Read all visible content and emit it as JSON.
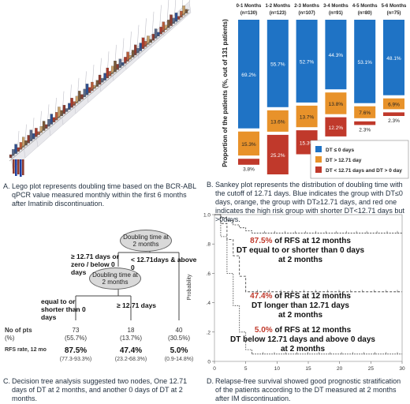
{
  "panelA": {
    "letter": "A.",
    "caption": "Lego plot represents doubling time based on the BCR-ABL qPCR value measured monthly within the first 6 months after Imatinib discontinuation."
  },
  "panelB": {
    "letter": "B.",
    "caption": "Sankey plot represents the distribution of doubling time with the cutoff of 12.71 days. Blue indicates the group with DT≤0 days, orange, the group with DT≥12.71 days, and red one indicates the high risk group with shorter DT<12.71 days but >0days."
  },
  "panelC": {
    "letter": "C.",
    "caption": "Decision tree analysis suggested two nodes, One 12.71 days of DT at 2 months, and another 0 days of DT at 2 months.",
    "node1": "Doubling time at 2 months",
    "node2": "Doubling time at 2 months",
    "branch_left_top": "≥ 12.71 days or zero / below 0 days",
    "branch_right_top": "< 12.71days & above 0",
    "branch_left_bottom": "equal to or shorter than 0 days",
    "branch_right_bottom": "≥ 12.71 days",
    "row1_label": "No of pts",
    "row1_sub": "(%)",
    "row2_label": "RFS rate, 12 mo",
    "groups": [
      {
        "n": "73",
        "pct": "(55.7%)",
        "rfs": "87.5%",
        "ci": "(77.3-93.3%)"
      },
      {
        "n": "18",
        "pct": "(13.7%)",
        "rfs": "47.4%",
        "ci": "(23.2-68.3%)"
      },
      {
        "n": "40",
        "pct": "(30.5%)",
        "rfs": "5.0%",
        "ci": "(0.9-14.8%)"
      }
    ]
  },
  "panelD": {
    "letter": "D.",
    "caption": "Relapse-free survival showed good prognostic stratification of the patients according to the DT measured at 2 months after IM discontinuation.",
    "annotations": [
      {
        "pct": "87.5%",
        "rest": " of RFS at 12 months",
        "line2": "DT equal to or shorter than 0 days",
        "line3": "at 2 months"
      },
      {
        "pct": "47.4%",
        "rest": " of RFS at 12 months",
        "line2": "DT longer than 12.71 days",
        "line3": "at 2 months"
      },
      {
        "pct": "5.0%",
        "rest": " of RFS at 12 months",
        "line2": "DT below 12.71 days and above 0 days",
        "line3": "at 2 months"
      }
    ]
  },
  "chart_data": [
    {
      "type": "bar",
      "categories": [
        "0-1 Months",
        "1-2 Months",
        "2-3 Months",
        "3-4 Months",
        "4-5 Months",
        "5-6 Months"
      ],
      "category_n": [
        "(n=130)",
        "(n=123)",
        "(n=107)",
        "(n=91)",
        "(n=80)",
        "(n=75)"
      ],
      "series": [
        {
          "name": "DT ≤ 0 days",
          "color": "#1f73c5",
          "values": [
            69.2,
            55.7,
            52.7,
            44.3,
            53.1,
            48.1
          ]
        },
        {
          "name": "DT > 12.71 day",
          "color": "#e8922a",
          "values": [
            15.3,
            13.6,
            13.7,
            13.8,
            7.6,
            6.9
          ]
        },
        {
          "name": "DT < 12.71 days and DT > 0 day",
          "color": "#c0392b",
          "values": [
            3.8,
            25.2,
            15.3,
            12.2,
            2.3,
            2.3
          ]
        }
      ],
      "labels": [
        [
          "69.2%",
          "55.7%",
          "52.7%",
          "44.3%",
          "53.1%",
          "48.1%"
        ],
        [
          "15.3%",
          "13.6%",
          "13.7%",
          "13.8%",
          "7.6%",
          "6.9%"
        ],
        [
          "3.8%",
          "25.2%",
          "15.3%",
          "12.2%",
          "2.3%",
          "2.3%"
        ]
      ],
      "ylabel": "Proportion of the patients (%, out of 131 patients)",
      "legend_position": "bottom-right"
    },
    {
      "type": "line",
      "ylabel": "Probability",
      "yticks": [
        "0",
        ".2",
        ".4",
        ".6",
        ".8",
        "1.0"
      ],
      "xticks": [
        "0",
        "5",
        "10",
        "15",
        "20",
        "25",
        "30"
      ],
      "xlim": [
        0,
        30
      ],
      "ylim": [
        0,
        1
      ],
      "series": [
        {
          "x": [
            0,
            1,
            2,
            3,
            4,
            5,
            6,
            8,
            30
          ],
          "y": [
            1.0,
            0.98,
            0.96,
            0.93,
            0.91,
            0.89,
            0.875,
            0.875,
            0.875
          ]
        },
        {
          "x": [
            0,
            1,
            2,
            3,
            4,
            5,
            30
          ],
          "y": [
            1.0,
            0.94,
            0.83,
            0.72,
            0.58,
            0.474,
            0.474
          ]
        },
        {
          "x": [
            0,
            1,
            2,
            3,
            4,
            5,
            6,
            30
          ],
          "y": [
            1.0,
            0.85,
            0.6,
            0.38,
            0.2,
            0.08,
            0.05,
            0.05
          ]
        }
      ]
    }
  ]
}
